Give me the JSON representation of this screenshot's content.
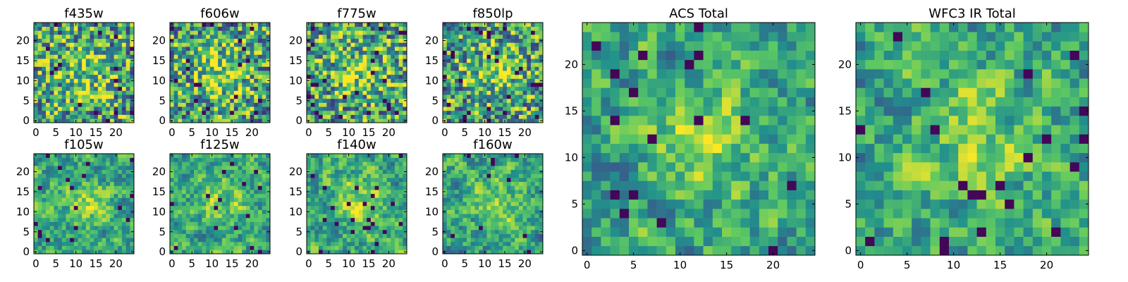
{
  "colormap": {
    "name": "viridis",
    "stops": [
      "#440154",
      "#3b528b",
      "#21918c",
      "#5ec962",
      "#fde725"
    ]
  },
  "chart_data": [
    {
      "type": "heatmap",
      "title": "f435w",
      "grid_size": 25,
      "xticks": [
        "0",
        "5",
        "10",
        "15",
        "20"
      ],
      "yticks": [
        "0",
        "5",
        "10",
        "15",
        "20"
      ]
    },
    {
      "type": "heatmap",
      "title": "f606w",
      "grid_size": 25,
      "xticks": [
        "0",
        "5",
        "10",
        "15",
        "20"
      ],
      "yticks": [
        "0",
        "5",
        "10",
        "15",
        "20"
      ]
    },
    {
      "type": "heatmap",
      "title": "f775w",
      "grid_size": 25,
      "xticks": [
        "0",
        "5",
        "10",
        "15",
        "20"
      ],
      "yticks": [
        "0",
        "5",
        "10",
        "15",
        "20"
      ]
    },
    {
      "type": "heatmap",
      "title": "f850lp",
      "grid_size": 25,
      "xticks": [
        "0",
        "5",
        "10",
        "15",
        "20"
      ],
      "yticks": [
        "0",
        "5",
        "10",
        "15",
        "20"
      ]
    },
    {
      "type": "heatmap",
      "title": "f105w",
      "grid_size": 25,
      "xticks": [
        "0",
        "5",
        "10",
        "15",
        "20"
      ],
      "yticks": [
        "0",
        "5",
        "10",
        "15",
        "20"
      ]
    },
    {
      "type": "heatmap",
      "title": "f125w",
      "grid_size": 25,
      "xticks": [
        "0",
        "5",
        "10",
        "15",
        "20"
      ],
      "yticks": [
        "0",
        "5",
        "10",
        "15",
        "20"
      ]
    },
    {
      "type": "heatmap",
      "title": "f140w",
      "grid_size": 25,
      "xticks": [
        "0",
        "5",
        "10",
        "15",
        "20"
      ],
      "yticks": [
        "0",
        "5",
        "10",
        "15",
        "20"
      ]
    },
    {
      "type": "heatmap",
      "title": "f160w",
      "grid_size": 25,
      "xticks": [
        "0",
        "5",
        "10",
        "15",
        "20"
      ],
      "yticks": [
        "0",
        "5",
        "10",
        "15",
        "20"
      ]
    },
    {
      "type": "heatmap",
      "title": "ACS Total",
      "grid_size": 25,
      "xticks": [
        "0",
        "5",
        "10",
        "15",
        "20"
      ],
      "yticks": [
        "0",
        "5",
        "10",
        "15",
        "20"
      ]
    },
    {
      "type": "heatmap",
      "title": "WFC3 IR Total",
      "grid_size": 25,
      "xticks": [
        "0",
        "5",
        "10",
        "15",
        "20"
      ],
      "yticks": [
        "0",
        "5",
        "10",
        "15",
        "20"
      ]
    }
  ]
}
